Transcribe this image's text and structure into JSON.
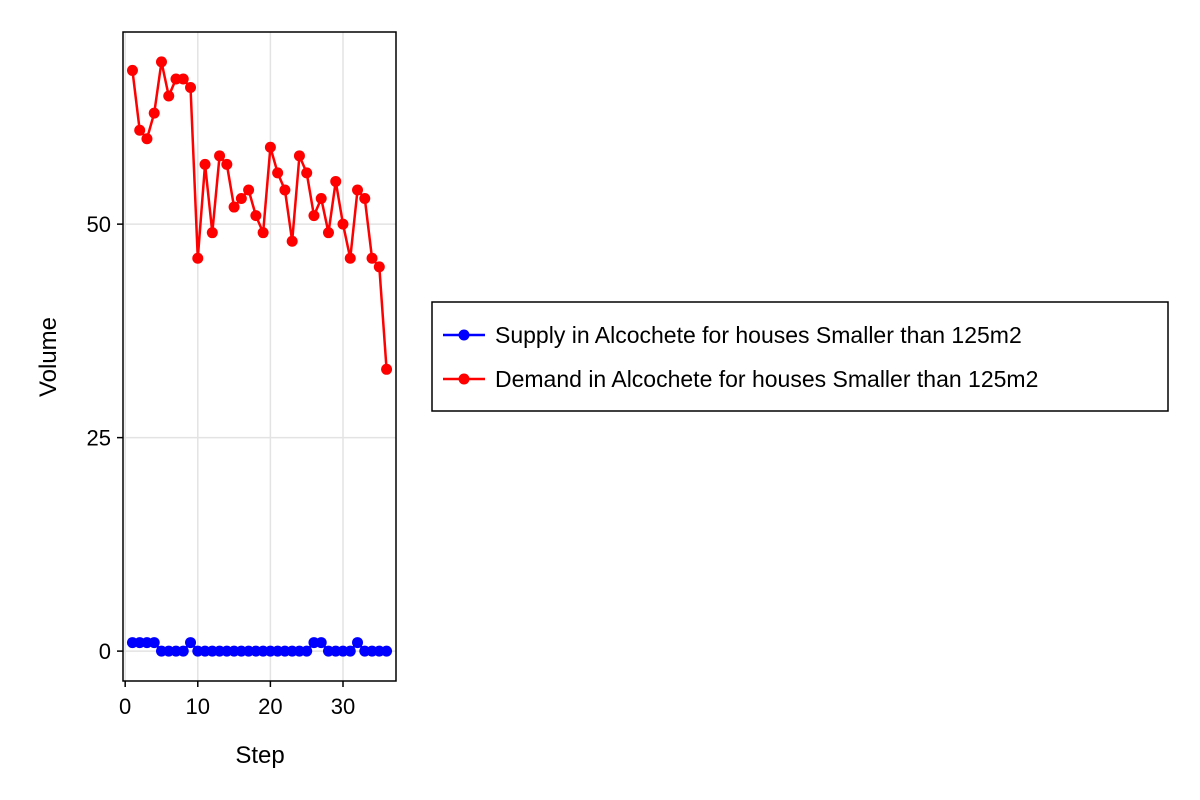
{
  "chart_data": {
    "type": "line",
    "title": "",
    "xlabel": "Step",
    "ylabel": "Volume",
    "xlim": [
      -0.3,
      37.3
    ],
    "ylim": [
      -3.5,
      72.5
    ],
    "xticks": [
      0,
      10,
      20,
      30
    ],
    "xtick_labels": [
      "0",
      "10",
      "20",
      "30"
    ],
    "yticks": [
      0,
      25,
      50
    ],
    "ytick_labels": [
      "0",
      "25",
      "50"
    ],
    "grid": true,
    "legend_placement": "right",
    "x": [
      1,
      2,
      3,
      4,
      5,
      6,
      7,
      8,
      9,
      10,
      11,
      12,
      13,
      14,
      15,
      16,
      17,
      18,
      19,
      20,
      21,
      22,
      23,
      24,
      25,
      26,
      27,
      28,
      29,
      30,
      31,
      32,
      33,
      34,
      35,
      36
    ],
    "series": [
      {
        "name": "Supply in Alcochete for houses Smaller than 125m2",
        "color": "#0000ff",
        "values": [
          1,
          1,
          1,
          1,
          0,
          0,
          0,
          0,
          1,
          0,
          0,
          0,
          0,
          0,
          0,
          0,
          0,
          0,
          0,
          0,
          0,
          0,
          0,
          0,
          0,
          1,
          1,
          0,
          0,
          0,
          0,
          1,
          0,
          0,
          0,
          0
        ]
      },
      {
        "name": "Demand in Alcochete for houses Smaller than 125m2",
        "color": "#ff0000",
        "values": [
          68,
          61,
          60,
          63,
          69,
          65,
          67,
          67,
          66,
          46,
          57,
          49,
          58,
          57,
          52,
          53,
          54,
          51,
          49,
          59,
          56,
          54,
          48,
          58,
          56,
          51,
          53,
          49,
          55,
          50,
          46,
          54,
          53,
          46,
          45,
          33
        ]
      }
    ]
  }
}
